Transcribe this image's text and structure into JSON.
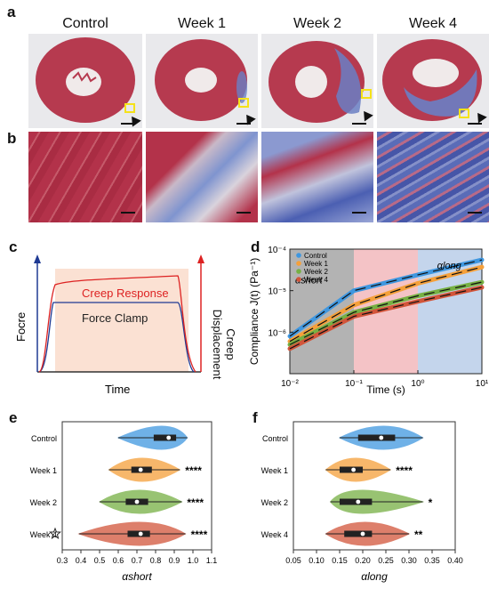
{
  "panels": {
    "a": "a",
    "b": "b",
    "c": "c",
    "d": "d",
    "e": "e",
    "f": "f"
  },
  "columns": [
    "Control",
    "Week 1",
    "Week 2",
    "Week 4"
  ],
  "panel_c": {
    "curve_label": "Creep Response",
    "clamp_label": "Force Clamp",
    "y_left": "Focre",
    "y_right": "Creep Displacement",
    "x_label": "Time"
  },
  "colors": {
    "control": "#3f97e0",
    "week1": "#f5a03a",
    "week2": "#76b043",
    "week4": "#d2553a",
    "tissue_red": "#b8344a",
    "fibrosis_blue": "#6a7fc4"
  },
  "chart_data": [
    {
      "id": "d",
      "type": "line",
      "ylabel": "Compliance J(t) (Pa⁻¹)",
      "xlabel": "Time (s)",
      "xscale": "log",
      "yscale": "log",
      "xlim": [
        0.01,
        10
      ],
      "ylim": [
        1e-07,
        0.0001
      ],
      "x_ticks": [
        "10⁻²",
        "10⁻¹",
        "10⁰",
        "10¹"
      ],
      "y_ticks": [
        "10⁻⁶",
        "10⁻⁵",
        "10⁻⁴"
      ],
      "annotations": [
        "αshort",
        "αlong"
      ],
      "legend": [
        "Control",
        "Week 1",
        "Week 2",
        "Week 4"
      ],
      "series": [
        {
          "name": "Control",
          "x": [
            0.01,
            0.1,
            1,
            10
          ],
          "y": [
            8e-07,
            1e-05,
            2.4e-05,
            5.5e-05
          ]
        },
        {
          "name": "Week 1",
          "x": [
            0.01,
            0.1,
            1,
            10
          ],
          "y": [
            6e-07,
            4.5e-06,
            1.5e-05,
            3.7e-05
          ]
        },
        {
          "name": "Week 2",
          "x": [
            0.01,
            0.1,
            1,
            10
          ],
          "y": [
            5e-07,
            3e-06,
            7.5e-06,
            1.6e-05
          ]
        },
        {
          "name": "Week 4",
          "x": [
            0.01,
            0.1,
            1,
            10
          ],
          "y": [
            4e-07,
            2.4e-06,
            5.5e-06,
            1.2e-05
          ]
        }
      ]
    },
    {
      "id": "e",
      "type": "violin",
      "xlabel": "αshort",
      "xlim": [
        0.3,
        1.1
      ],
      "x_ticks": [
        "0.3",
        "0.4",
        "0.5",
        "0.6",
        "0.7",
        "0.8",
        "0.9",
        "1.0",
        "1.1"
      ],
      "categories": [
        "Control",
        "Week 1",
        "Week 2",
        "Week 4"
      ],
      "median": [
        0.87,
        0.72,
        0.7,
        0.72
      ],
      "mean": [
        0.88,
        0.72,
        0.71,
        0.75
      ],
      "q1": [
        0.79,
        0.67,
        0.64,
        0.65
      ],
      "q3": [
        0.91,
        0.78,
        0.76,
        0.77
      ],
      "min": [
        0.6,
        0.55,
        0.5,
        0.39
      ],
      "max": [
        0.97,
        0.93,
        0.94,
        0.96
      ],
      "significance": [
        "",
        "****",
        "****",
        "****"
      ]
    },
    {
      "id": "f",
      "type": "violin",
      "xlabel": "αlong",
      "xlim": [
        0.05,
        0.4
      ],
      "x_ticks": [
        "0.05",
        "0.10",
        "0.15",
        "0.20",
        "0.25",
        "0.30",
        "0.35",
        "0.40"
      ],
      "categories": [
        "Control",
        "Week 1",
        "Week 2",
        "Week 4"
      ],
      "median": [
        0.24,
        0.18,
        0.19,
        0.2
      ],
      "mean": [
        0.25,
        0.18,
        0.17,
        0.2
      ],
      "q1": [
        0.19,
        0.15,
        0.15,
        0.16
      ],
      "q3": [
        0.27,
        0.2,
        0.22,
        0.22
      ],
      "min": [
        0.15,
        0.12,
        0.13,
        0.12
      ],
      "max": [
        0.33,
        0.26,
        0.33,
        0.3
      ],
      "significance": [
        "",
        "****",
        "*",
        "**"
      ]
    }
  ]
}
